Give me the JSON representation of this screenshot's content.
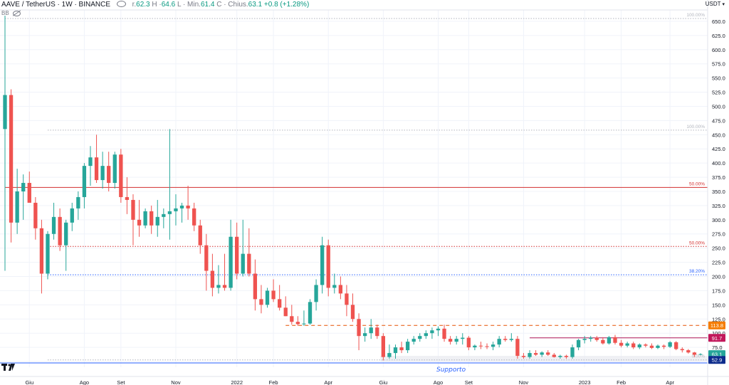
{
  "header": {
    "symbol": "AAVE / TetherUS · 1W · BINANCE",
    "open": {
      "label": "r.",
      "value": "62.3"
    },
    "high": {
      "label": "H ·",
      "value": "64.6"
    },
    "low": {
      "label": "L · Min.",
      "value": "61.4"
    },
    "close": {
      "label": "C · Chius.",
      "value": "63.1"
    },
    "change": "+0.8 (+1.28%)",
    "indicator": "BB",
    "eye_icon": "eye-icon",
    "hidden_icon": "eye-off-icon"
  },
  "currency": "USDT",
  "support_label": "Supporto",
  "colors": {
    "up": "#26a69a",
    "down": "#ef5350",
    "resistance": "#d32f2f",
    "fib_blue": "#2962ff",
    "support_band": "#d1d4dc"
  },
  "chart_data": {
    "type": "candlestick",
    "ylim": [
      40,
      670
    ],
    "yticks": [
      50,
      75,
      100,
      125,
      150,
      175,
      200,
      225,
      250,
      275,
      300,
      325,
      350,
      375,
      400,
      425,
      450,
      475,
      500,
      525,
      550,
      575,
      600,
      625,
      650
    ],
    "xticks": [
      {
        "label": "Giu",
        "i": 4
      },
      {
        "label": "Ago",
        "i": 13
      },
      {
        "label": "Set",
        "i": 19
      },
      {
        "label": "Nov",
        "i": 28
      },
      {
        "label": "2022",
        "i": 38
      },
      {
        "label": "Feb",
        "i": 44
      },
      {
        "label": "Apr",
        "i": 53
      },
      {
        "label": "Giu",
        "i": 62
      },
      {
        "label": "Ago",
        "i": 71
      },
      {
        "label": "Set",
        "i": 76
      },
      {
        "label": "Nov",
        "i": 85
      },
      {
        "label": "2023",
        "i": 95
      },
      {
        "label": "Feb",
        "i": 101
      },
      {
        "label": "Apr",
        "i": 109
      }
    ],
    "candles": [
      {
        "o": 460,
        "h": 660,
        "l": 210,
        "c": 520
      },
      {
        "o": 520,
        "h": 530,
        "l": 260,
        "c": 295
      },
      {
        "o": 295,
        "h": 390,
        "l": 275,
        "c": 350
      },
      {
        "o": 350,
        "h": 380,
        "l": 300,
        "c": 365
      },
      {
        "o": 365,
        "h": 385,
        "l": 335,
        "c": 330
      },
      {
        "o": 330,
        "h": 340,
        "l": 265,
        "c": 285
      },
      {
        "o": 285,
        "h": 300,
        "l": 170,
        "c": 205
      },
      {
        "o": 205,
        "h": 280,
        "l": 195,
        "c": 275
      },
      {
        "o": 275,
        "h": 330,
        "l": 265,
        "c": 305
      },
      {
        "o": 305,
        "h": 320,
        "l": 245,
        "c": 255
      },
      {
        "o": 255,
        "h": 300,
        "l": 210,
        "c": 295
      },
      {
        "o": 295,
        "h": 330,
        "l": 280,
        "c": 320
      },
      {
        "o": 320,
        "h": 350,
        "l": 300,
        "c": 340
      },
      {
        "o": 340,
        "h": 400,
        "l": 320,
        "c": 395
      },
      {
        "o": 395,
        "h": 430,
        "l": 360,
        "c": 410
      },
      {
        "o": 410,
        "h": 450,
        "l": 365,
        "c": 370
      },
      {
        "o": 370,
        "h": 420,
        "l": 355,
        "c": 395
      },
      {
        "o": 395,
        "h": 420,
        "l": 350,
        "c": 365
      },
      {
        "o": 365,
        "h": 420,
        "l": 355,
        "c": 415
      },
      {
        "o": 415,
        "h": 425,
        "l": 330,
        "c": 340
      },
      {
        "o": 340,
        "h": 375,
        "l": 310,
        "c": 335
      },
      {
        "o": 335,
        "h": 345,
        "l": 255,
        "c": 300
      },
      {
        "o": 300,
        "h": 335,
        "l": 270,
        "c": 290
      },
      {
        "o": 290,
        "h": 320,
        "l": 285,
        "c": 315
      },
      {
        "o": 315,
        "h": 325,
        "l": 275,
        "c": 290
      },
      {
        "o": 290,
        "h": 335,
        "l": 270,
        "c": 305
      },
      {
        "o": 305,
        "h": 320,
        "l": 285,
        "c": 310
      },
      {
        "o": 310,
        "h": 460,
        "l": 265,
        "c": 315
      },
      {
        "o": 315,
        "h": 345,
        "l": 290,
        "c": 320
      },
      {
        "o": 320,
        "h": 330,
        "l": 295,
        "c": 325
      },
      {
        "o": 325,
        "h": 360,
        "l": 300,
        "c": 320
      },
      {
        "o": 320,
        "h": 330,
        "l": 280,
        "c": 290
      },
      {
        "o": 290,
        "h": 300,
        "l": 240,
        "c": 255
      },
      {
        "o": 255,
        "h": 275,
        "l": 175,
        "c": 210
      },
      {
        "o": 210,
        "h": 240,
        "l": 165,
        "c": 180
      },
      {
        "o": 180,
        "h": 220,
        "l": 170,
        "c": 185
      },
      {
        "o": 185,
        "h": 240,
        "l": 175,
        "c": 180
      },
      {
        "o": 180,
        "h": 300,
        "l": 175,
        "c": 270
      },
      {
        "o": 270,
        "h": 295,
        "l": 195,
        "c": 205
      },
      {
        "o": 205,
        "h": 300,
        "l": 200,
        "c": 240
      },
      {
        "o": 240,
        "h": 285,
        "l": 200,
        "c": 205
      },
      {
        "o": 205,
        "h": 230,
        "l": 140,
        "c": 160
      },
      {
        "o": 160,
        "h": 185,
        "l": 135,
        "c": 150
      },
      {
        "o": 150,
        "h": 180,
        "l": 145,
        "c": 175
      },
      {
        "o": 175,
        "h": 195,
        "l": 155,
        "c": 160
      },
      {
        "o": 160,
        "h": 185,
        "l": 140,
        "c": 145
      },
      {
        "o": 145,
        "h": 165,
        "l": 130,
        "c": 130
      },
      {
        "o": 130,
        "h": 150,
        "l": 115,
        "c": 120
      },
      {
        "o": 120,
        "h": 130,
        "l": 113,
        "c": 116
      },
      {
        "o": 116,
        "h": 140,
        "l": 113,
        "c": 117
      },
      {
        "o": 117,
        "h": 160,
        "l": 115,
        "c": 155
      },
      {
        "o": 155,
        "h": 195,
        "l": 140,
        "c": 185
      },
      {
        "o": 185,
        "h": 270,
        "l": 170,
        "c": 255
      },
      {
        "o": 255,
        "h": 265,
        "l": 165,
        "c": 180
      },
      {
        "o": 180,
        "h": 205,
        "l": 170,
        "c": 185
      },
      {
        "o": 185,
        "h": 200,
        "l": 160,
        "c": 170
      },
      {
        "o": 170,
        "h": 185,
        "l": 130,
        "c": 150
      },
      {
        "o": 150,
        "h": 170,
        "l": 120,
        "c": 125
      },
      {
        "o": 125,
        "h": 135,
        "l": 70,
        "c": 95
      },
      {
        "o": 95,
        "h": 110,
        "l": 85,
        "c": 100
      },
      {
        "o": 100,
        "h": 125,
        "l": 90,
        "c": 110
      },
      {
        "o": 110,
        "h": 115,
        "l": 90,
        "c": 95
      },
      {
        "o": 95,
        "h": 100,
        "l": 52,
        "c": 58
      },
      {
        "o": 58,
        "h": 80,
        "l": 55,
        "c": 65
      },
      {
        "o": 65,
        "h": 80,
        "l": 55,
        "c": 75
      },
      {
        "o": 75,
        "h": 85,
        "l": 65,
        "c": 70
      },
      {
        "o": 70,
        "h": 90,
        "l": 65,
        "c": 85
      },
      {
        "o": 85,
        "h": 95,
        "l": 80,
        "c": 90
      },
      {
        "o": 90,
        "h": 100,
        "l": 85,
        "c": 95
      },
      {
        "o": 95,
        "h": 105,
        "l": 90,
        "c": 100
      },
      {
        "o": 100,
        "h": 110,
        "l": 90,
        "c": 105
      },
      {
        "o": 105,
        "h": 112,
        "l": 95,
        "c": 108
      },
      {
        "o": 108,
        "h": 115,
        "l": 85,
        "c": 90
      },
      {
        "o": 90,
        "h": 95,
        "l": 80,
        "c": 85
      },
      {
        "o": 85,
        "h": 95,
        "l": 80,
        "c": 90
      },
      {
        "o": 90,
        "h": 100,
        "l": 80,
        "c": 92
      },
      {
        "o": 92,
        "h": 95,
        "l": 70,
        "c": 75
      },
      {
        "o": 75,
        "h": 80,
        "l": 70,
        "c": 78
      },
      {
        "o": 78,
        "h": 85,
        "l": 72,
        "c": 77
      },
      {
        "o": 77,
        "h": 82,
        "l": 72,
        "c": 76
      },
      {
        "o": 76,
        "h": 85,
        "l": 70,
        "c": 80
      },
      {
        "o": 80,
        "h": 95,
        "l": 75,
        "c": 90
      },
      {
        "o": 90,
        "h": 95,
        "l": 85,
        "c": 88
      },
      {
        "o": 88,
        "h": 100,
        "l": 85,
        "c": 90
      },
      {
        "o": 90,
        "h": 95,
        "l": 55,
        "c": 60
      },
      {
        "o": 60,
        "h": 65,
        "l": 55,
        "c": 58
      },
      {
        "o": 58,
        "h": 70,
        "l": 55,
        "c": 65
      },
      {
        "o": 65,
        "h": 70,
        "l": 60,
        "c": 62
      },
      {
        "o": 62,
        "h": 68,
        "l": 58,
        "c": 66
      },
      {
        "o": 66,
        "h": 70,
        "l": 60,
        "c": 62
      },
      {
        "o": 62,
        "h": 65,
        "l": 57,
        "c": 58
      },
      {
        "o": 58,
        "h": 62,
        "l": 55,
        "c": 60
      },
      {
        "o": 60,
        "h": 62,
        "l": 55,
        "c": 58
      },
      {
        "o": 58,
        "h": 80,
        "l": 55,
        "c": 75
      },
      {
        "o": 75,
        "h": 90,
        "l": 70,
        "c": 88
      },
      {
        "o": 88,
        "h": 95,
        "l": 82,
        "c": 90
      },
      {
        "o": 90,
        "h": 95,
        "l": 85,
        "c": 92
      },
      {
        "o": 92,
        "h": 95,
        "l": 85,
        "c": 88
      },
      {
        "o": 88,
        "h": 93,
        "l": 80,
        "c": 82
      },
      {
        "o": 82,
        "h": 95,
        "l": 80,
        "c": 93
      },
      {
        "o": 93,
        "h": 97,
        "l": 80,
        "c": 83
      },
      {
        "o": 83,
        "h": 88,
        "l": 75,
        "c": 78
      },
      {
        "o": 78,
        "h": 85,
        "l": 75,
        "c": 82
      },
      {
        "o": 82,
        "h": 85,
        "l": 72,
        "c": 75
      },
      {
        "o": 75,
        "h": 82,
        "l": 72,
        "c": 80
      },
      {
        "o": 80,
        "h": 82,
        "l": 75,
        "c": 78
      },
      {
        "o": 78,
        "h": 82,
        "l": 72,
        "c": 74
      },
      {
        "o": 74,
        "h": 80,
        "l": 72,
        "c": 78
      },
      {
        "o": 78,
        "h": 80,
        "l": 72,
        "c": 76
      },
      {
        "o": 76,
        "h": 86,
        "l": 74,
        "c": 84
      },
      {
        "o": 84,
        "h": 86,
        "l": 70,
        "c": 72
      },
      {
        "o": 72,
        "h": 75,
        "l": 66,
        "c": 70
      },
      {
        "o": 70,
        "h": 72,
        "l": 64,
        "c": 66
      },
      {
        "o": 66,
        "h": 67,
        "l": 58,
        "c": 62
      },
      {
        "o": 62.3,
        "h": 64.6,
        "l": 61.4,
        "c": 63.1
      }
    ],
    "levels": [
      {
        "price": 655,
        "label": "100.00%",
        "style": "dotted",
        "color": "#b2b5be",
        "start_i": 0
      },
      {
        "price": 458,
        "label": "100.00%",
        "style": "dotted",
        "color": "#b2b5be",
        "start_i": 7
      },
      {
        "price": 357,
        "label": "50.00%",
        "style": "solid",
        "color": "#d32f2f",
        "start_i": 0
      },
      {
        "price": 253,
        "label": "50.00%",
        "style": "dotted",
        "color": "#d32f2f",
        "start_i": 7
      },
      {
        "price": 203,
        "label": "38.20%",
        "style": "dotted",
        "color": "#2962ff",
        "start_i": 7
      },
      {
        "price": 113.8,
        "label": "",
        "style": "dashed",
        "color": "#e65100",
        "start_i": 46
      },
      {
        "price": 91.7,
        "label": "",
        "style": "solid",
        "color": "#ad1457",
        "start_i": 86
      },
      {
        "price": 52.9,
        "label": "0.00%",
        "style": "dotted",
        "color": "#b2b5be",
        "start_i": 7
      }
    ],
    "price_tags": [
      {
        "price": 113.8,
        "text": "113.8",
        "bg": "#f57c00"
      },
      {
        "price": 91.7,
        "text": "91.7",
        "bg": "#c2185b"
      },
      {
        "price": 63.1,
        "text": "63.1",
        "bg": "#26a69a"
      },
      {
        "price": 52.9,
        "text": "52.9",
        "bg": "#0d2c8c"
      }
    ],
    "support_band": [
      50,
      60
    ]
  }
}
